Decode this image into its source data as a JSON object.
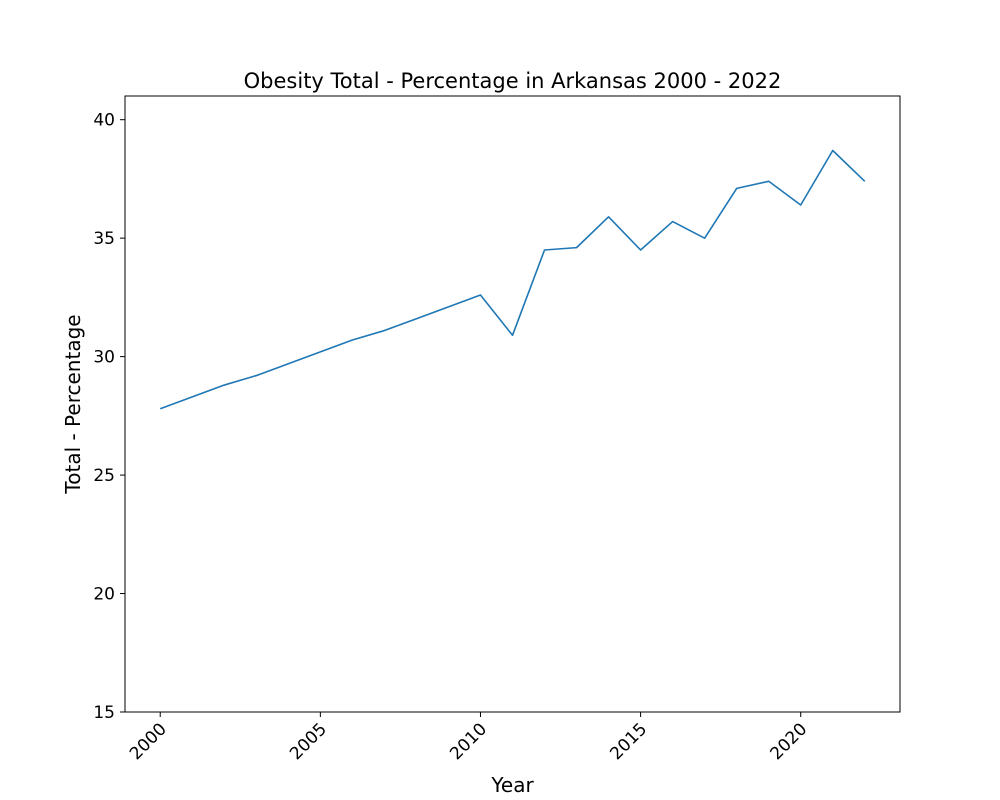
{
  "chart_data": {
    "type": "line",
    "title": "Obesity Total - Percentage in Arkansas 2000 - 2022",
    "xlabel": "Year",
    "ylabel": "Total - Percentage",
    "xlim": [
      1998.9,
      2023.1
    ],
    "ylim": [
      15,
      41
    ],
    "x_ticks": [
      2000,
      2005,
      2010,
      2015,
      2020
    ],
    "y_ticks": [
      15,
      20,
      25,
      30,
      35,
      40
    ],
    "grid": false,
    "legend": "none",
    "line_color": "#1f77b4",
    "series": [
      {
        "x": [
          2000,
          2001,
          2002,
          2003,
          2004,
          2005,
          2006,
          2007,
          2008,
          2009,
          2010,
          2011,
          2012,
          2013,
          2014,
          2015,
          2016,
          2017,
          2018,
          2019,
          2020,
          2021,
          2022
        ],
        "values": [
          27.8,
          28.3,
          28.8,
          29.2,
          29.7,
          30.2,
          30.7,
          31.1,
          31.6,
          32.1,
          32.6,
          30.9,
          34.5,
          34.6,
          35.9,
          34.5,
          35.7,
          35.0,
          37.1,
          37.4,
          36.4,
          38.7,
          37.4
        ]
      }
    ]
  }
}
